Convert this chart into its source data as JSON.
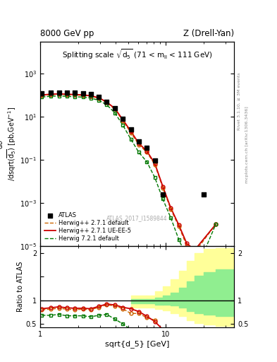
{
  "title_left": "8000 GeV pp",
  "title_right": "Z (Drell-Yan)",
  "plot_title": "Splitting scale $\\sqrt{\\mathregular{d_5}}$ (71 < m$_{\\mathregular{ll}}$ < 111 GeV)",
  "xlabel": "sqrt{d_5} [GeV]",
  "ylabel_main": "dσ\n/dsqrt(d$_{5}$) [pb,GeV$^{-1}$]",
  "ylabel_ratio": "Ratio to ATLAS",
  "right_label1": "Rivet 3.1.10, ≥ 3M events",
  "right_label2": "mcplots.cern.ch [arXiv:1306.3436]",
  "watermark": "ATLAS_2017_I1589844",
  "atlas_x": [
    1.03,
    1.21,
    1.41,
    1.63,
    1.89,
    2.19,
    2.53,
    2.93,
    3.39,
    3.93,
    4.55,
    5.27,
    6.1,
    7.07,
    8.18,
    9.47,
    20.0
  ],
  "atlas_y": [
    120,
    130,
    130,
    130,
    125,
    120,
    110,
    85,
    50,
    25,
    8.0,
    2.5,
    0.7,
    0.35,
    0.09,
    0.0025,
    0.0025
  ],
  "hw271d_x": [
    1.03,
    1.21,
    1.41,
    1.63,
    1.89,
    2.19,
    2.53,
    2.93,
    3.39,
    3.93,
    4.55,
    5.27,
    6.1,
    7.07,
    8.18,
    9.47,
    10.97,
    12.7,
    14.7,
    17.02,
    25.0
  ],
  "hw271d_y": [
    95,
    105,
    108,
    105,
    100,
    97,
    88,
    72,
    45,
    22,
    6.5,
    1.8,
    0.5,
    0.22,
    0.06,
    0.005,
    0.0005,
    8e-05,
    1e-05,
    5e-06,
    0.0001
  ],
  "hw271ue_x": [
    1.03,
    1.21,
    1.41,
    1.63,
    1.89,
    2.19,
    2.53,
    2.93,
    3.39,
    3.93,
    4.55,
    5.27,
    6.1,
    7.07,
    8.18,
    9.47,
    10.97,
    12.7,
    14.7,
    17.02,
    25.0
  ],
  "hw271ue_y": [
    100,
    110,
    113,
    110,
    105,
    102,
    92,
    75,
    47,
    24,
    7.2,
    2.1,
    0.58,
    0.25,
    0.068,
    0.0058,
    0.00058,
    9.5e-05,
    1.3e-05,
    6.5e-06,
    0.0001
  ],
  "hw721d_x": [
    1.03,
    1.21,
    1.41,
    1.63,
    1.89,
    2.19,
    2.53,
    2.93,
    3.39,
    3.93,
    4.55,
    5.27,
    6.1,
    7.07,
    8.18,
    9.47,
    10.97,
    12.7,
    14.7,
    17.02,
    25.0
  ],
  "hw721d_y": [
    80,
    88,
    90,
    87,
    83,
    80,
    72,
    57,
    35,
    15,
    4.0,
    0.9,
    0.22,
    0.08,
    0.015,
    0.0015,
    0.0002,
    2e-05,
    3e-06,
    5e-07,
    0.0001
  ],
  "ratio_hw271d_x": [
    1.03,
    1.21,
    1.41,
    1.63,
    1.89,
    2.19,
    2.53,
    2.93,
    3.39,
    3.93,
    4.55,
    5.27,
    6.1,
    7.07,
    8.18
  ],
  "ratio_hw271d_y": [
    0.8,
    0.81,
    0.83,
    0.81,
    0.8,
    0.81,
    0.8,
    0.85,
    0.9,
    0.88,
    0.82,
    0.72,
    0.72,
    0.63,
    0.58
  ],
  "ratio_hw271ue_x": [
    1.03,
    1.21,
    1.41,
    1.63,
    1.89,
    2.19,
    2.53,
    2.93,
    3.39,
    3.93,
    4.55,
    5.27,
    6.1,
    7.07,
    8.18,
    9.47
  ],
  "ratio_hw271ue_y": [
    0.82,
    0.84,
    0.86,
    0.84,
    0.83,
    0.83,
    0.82,
    0.87,
    0.92,
    0.9,
    0.85,
    0.82,
    0.76,
    0.66,
    0.55,
    0.38
  ],
  "ratio_hw721d_x": [
    1.03,
    1.21,
    1.41,
    1.63,
    1.89,
    2.19,
    2.53,
    2.93,
    3.39,
    3.93,
    4.55,
    5.27,
    6.1,
    7.07
  ],
  "ratio_hw721d_y": [
    0.68,
    0.68,
    0.7,
    0.67,
    0.67,
    0.67,
    0.65,
    0.68,
    0.7,
    0.6,
    0.5,
    0.38,
    0.32,
    0.38
  ],
  "band_x_edges": [
    5.27,
    7.07,
    8.18,
    9.47,
    10.97,
    12.7,
    14.7,
    17.02,
    20.0,
    25.0,
    35.0
  ],
  "green_lo": [
    0.93,
    0.93,
    0.91,
    0.91,
    0.89,
    0.84,
    0.77,
    0.72,
    0.69,
    0.67
  ],
  "green_hi": [
    1.03,
    1.03,
    1.06,
    1.1,
    1.16,
    1.26,
    1.4,
    1.52,
    1.6,
    1.65
  ],
  "yellow_lo": [
    0.84,
    0.84,
    0.81,
    0.79,
    0.73,
    0.66,
    0.57,
    0.51,
    0.48,
    0.46
  ],
  "yellow_hi": [
    1.1,
    1.1,
    1.19,
    1.29,
    1.44,
    1.63,
    1.83,
    1.99,
    2.09,
    2.1
  ],
  "color_atlas": "#000000",
  "color_hw271d": "#cc6600",
  "color_hw271ue": "#cc0000",
  "color_hw721d": "#007700",
  "color_band_green": "#90ee90",
  "color_band_yellow": "#ffff99",
  "xlim": [
    1.0,
    35.0
  ],
  "ylim_main": [
    1e-05,
    30000.0
  ],
  "ylim_ratio": [
    0.42,
    2.15
  ],
  "yticks_ratio": [
    0.5,
    1.0,
    1.5,
    2.0
  ],
  "ytick_labels_ratio": [
    "0.5",
    "1",
    "",
    "2"
  ]
}
